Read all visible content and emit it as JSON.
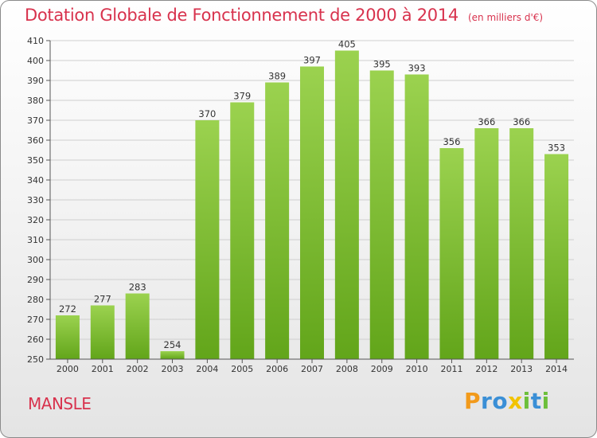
{
  "chart_data": {
    "type": "bar",
    "title": "Dotation Globale de Fonctionnement de 2000 à 2014",
    "subtitle": "(en milliers d'€)",
    "categories": [
      "2000",
      "2001",
      "2002",
      "2003",
      "2004",
      "2005",
      "2006",
      "2007",
      "2008",
      "2009",
      "2010",
      "2011",
      "2012",
      "2013",
      "2014"
    ],
    "values": [
      272,
      277,
      283,
      254,
      370,
      379,
      389,
      397,
      405,
      395,
      393,
      356,
      366,
      366,
      353
    ],
    "ylim": [
      250,
      410
    ],
    "yticks": [
      250,
      260,
      270,
      280,
      290,
      300,
      310,
      320,
      330,
      340,
      350,
      360,
      370,
      380,
      390,
      400,
      410
    ],
    "grid": true,
    "bar_color": "#8cc63e",
    "data_labels": true
  },
  "page": {
    "commune": "MANSLE",
    "logo": {
      "letters": [
        "P",
        "r",
        "o",
        "x",
        "i",
        "t",
        "i"
      ],
      "colors": [
        "#f29a1b",
        "#3a8fd6",
        "#3a8fd6",
        "#f2c300",
        "#6cbf3a",
        "#3a8fd6",
        "#6cbf3a"
      ]
    }
  },
  "colors": {
    "title": "#d8324d",
    "grid": "#cfcfcf",
    "axis": "#555555"
  }
}
